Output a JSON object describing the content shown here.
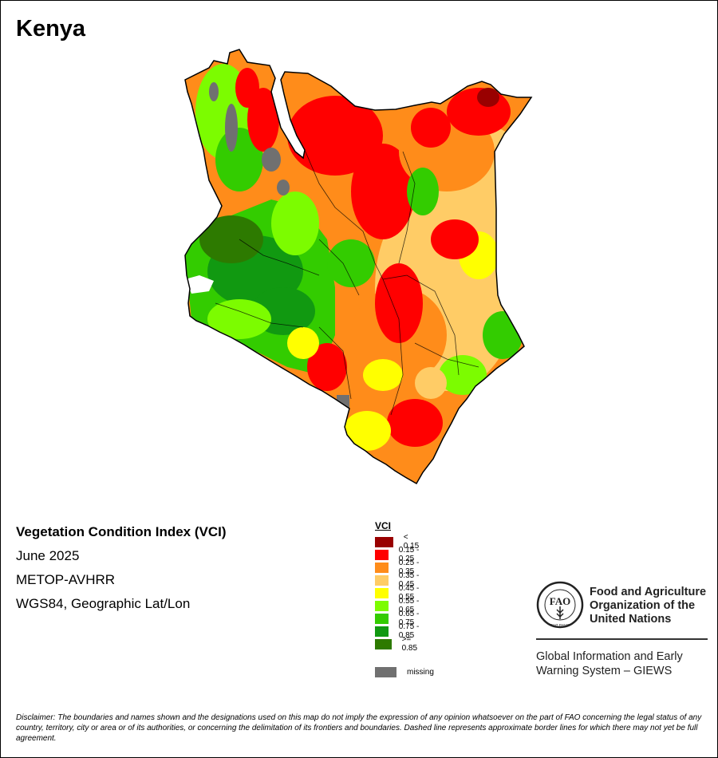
{
  "map": {
    "title": "Kenya",
    "index_name": "Vegetation Condition Index (VCI)",
    "period": "June 2025",
    "sensor": "METOP-AVHRR",
    "projection": "WGS84, Geographic Lat/Lon"
  },
  "legend": {
    "title": "VCI",
    "classes": [
      {
        "label": "< 0.15",
        "color": "#990000"
      },
      {
        "label": "0.15 - 0.25",
        "color": "#ff0000"
      },
      {
        "label": "0.25 - 0.35",
        "color": "#ff8c1a"
      },
      {
        "label": "0.35 - 0.45",
        "color": "#ffcc66"
      },
      {
        "label": "0.45 - 0.55",
        "color": "#ffff00"
      },
      {
        "label": "0.55 - 0.65",
        "color": "#7cfc00"
      },
      {
        "label": "0.65 - 0.75",
        "color": "#33cc00"
      },
      {
        "label": "0.75 - 0.85",
        "color": "#119911"
      },
      {
        "label": ">= 0.85",
        "color": "#2d7a00"
      }
    ],
    "missing": {
      "label": "missing",
      "color": "#707070"
    }
  },
  "org": {
    "logo_text": "FAO",
    "logo_motto": "FIAT PANIS",
    "name_line1": "Food and Agriculture",
    "name_line2": "Organization of the",
    "name_line3": "United Nations",
    "system_line1": "Global Information and Early",
    "system_line2": "Warning System – GIEWS"
  },
  "disclaimer": {
    "label": "Disclaimer:",
    "text": "The boundaries and names shown and the designations used on this map do not imply the expression of any opinion whatsoever on the part of FAO concerning the legal status of any country, territory, city or area or of its authorities, or concerning the delimitation of its frontiers and boundaries. Dashed line represents approximate border lines for which there may not yet be full agreement."
  }
}
